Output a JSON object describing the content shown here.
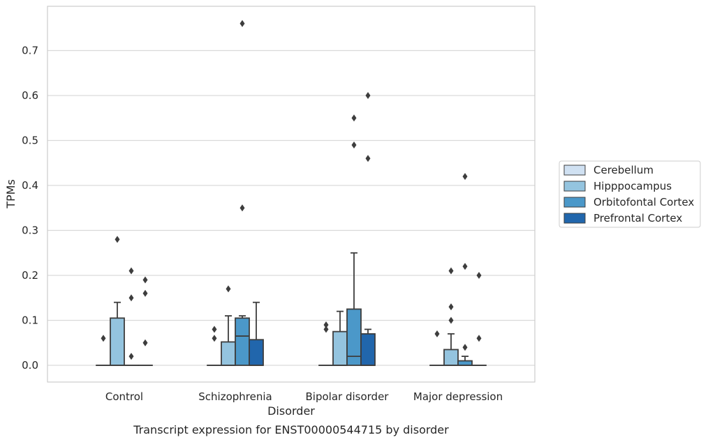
{
  "chart_data": {
    "type": "box",
    "title": "",
    "caption": "Transcript expression for ENST00000544715 by disorder",
    "xlabel": "Disorder",
    "ylabel": "TPMs",
    "ylim": [
      -0.037,
      0.8
    ],
    "yticks": [
      "0.0",
      "0.1",
      "0.2",
      "0.3",
      "0.4",
      "0.5",
      "0.6",
      "0.7"
    ],
    "grid": "horizontal",
    "legend_position": "right",
    "categories": [
      "Control",
      "Schizophrenia",
      "Bipolar disorder",
      "Major depression"
    ],
    "series": [
      {
        "name": "Cerebellum",
        "color": "#d0e1f2",
        "boxes": [
          {
            "category": "Control",
            "min": 0,
            "q1": 0,
            "median": 0,
            "q3": 0,
            "max": 0,
            "outliers": [
              0.06
            ]
          },
          {
            "category": "Schizophrenia",
            "min": 0,
            "q1": 0,
            "median": 0,
            "q3": 0,
            "max": 0,
            "outliers": [
              0.08,
              0.06
            ]
          },
          {
            "category": "Bipolar disorder",
            "min": 0,
            "q1": 0,
            "median": 0,
            "q3": 0,
            "max": 0,
            "outliers": [
              0.09,
              0.08
            ]
          },
          {
            "category": "Major depression",
            "min": 0,
            "q1": 0,
            "median": 0,
            "q3": 0,
            "max": 0,
            "outliers": [
              0.07
            ]
          }
        ]
      },
      {
        "name": "Hipppocampus",
        "color": "#94c4df",
        "boxes": [
          {
            "category": "Control",
            "min": 0,
            "q1": 0,
            "median": 0,
            "q3": 0.105,
            "max": 0.14,
            "outliers": [
              0.28
            ]
          },
          {
            "category": "Schizophrenia",
            "min": 0,
            "q1": 0,
            "median": 0,
            "q3": 0.052,
            "max": 0.11,
            "outliers": [
              0.17
            ]
          },
          {
            "category": "Bipolar disorder",
            "min": 0,
            "q1": 0,
            "median": 0,
            "q3": 0.075,
            "max": 0.12,
            "outliers": []
          },
          {
            "category": "Major depression",
            "min": 0,
            "q1": 0,
            "median": 0,
            "q3": 0.035,
            "max": 0.07,
            "outliers": [
              0.21,
              0.13,
              0.1
            ]
          }
        ]
      },
      {
        "name": "Orbitofontal Cortex",
        "color": "#4b98c9",
        "boxes": [
          {
            "category": "Control",
            "min": 0,
            "q1": 0,
            "median": 0,
            "q3": 0,
            "max": 0,
            "outliers": [
              0.21,
              0.15,
              0.02
            ]
          },
          {
            "category": "Schizophrenia",
            "min": 0,
            "q1": 0,
            "median": 0.065,
            "q3": 0.105,
            "max": 0.11,
            "outliers": [
              0.76,
              0.35
            ]
          },
          {
            "category": "Bipolar disorder",
            "min": 0,
            "q1": 0,
            "median": 0.02,
            "q3": 0.125,
            "max": 0.25,
            "outliers": [
              0.55,
              0.49
            ]
          },
          {
            "category": "Major depression",
            "min": 0,
            "q1": 0,
            "median": 0,
            "q3": 0.01,
            "max": 0.02,
            "outliers": [
              0.42,
              0.22,
              0.04
            ]
          }
        ]
      },
      {
        "name": "Prefrontal Cortex",
        "color": "#2166ac",
        "boxes": [
          {
            "category": "Control",
            "min": 0,
            "q1": 0,
            "median": 0,
            "q3": 0,
            "max": 0,
            "outliers": [
              0.19,
              0.16,
              0.05
            ]
          },
          {
            "category": "Schizophrenia",
            "min": 0,
            "q1": 0,
            "median": 0,
            "q3": 0.057,
            "max": 0.14,
            "outliers": []
          },
          {
            "category": "Bipolar disorder",
            "min": 0,
            "q1": 0,
            "median": 0,
            "q3": 0.07,
            "max": 0.08,
            "outliers": [
              0.6,
              0.46
            ]
          },
          {
            "category": "Major depression",
            "min": 0,
            "q1": 0,
            "median": 0,
            "q3": 0,
            "max": 0,
            "outliers": [
              0.2,
              0.06
            ]
          }
        ]
      }
    ]
  }
}
